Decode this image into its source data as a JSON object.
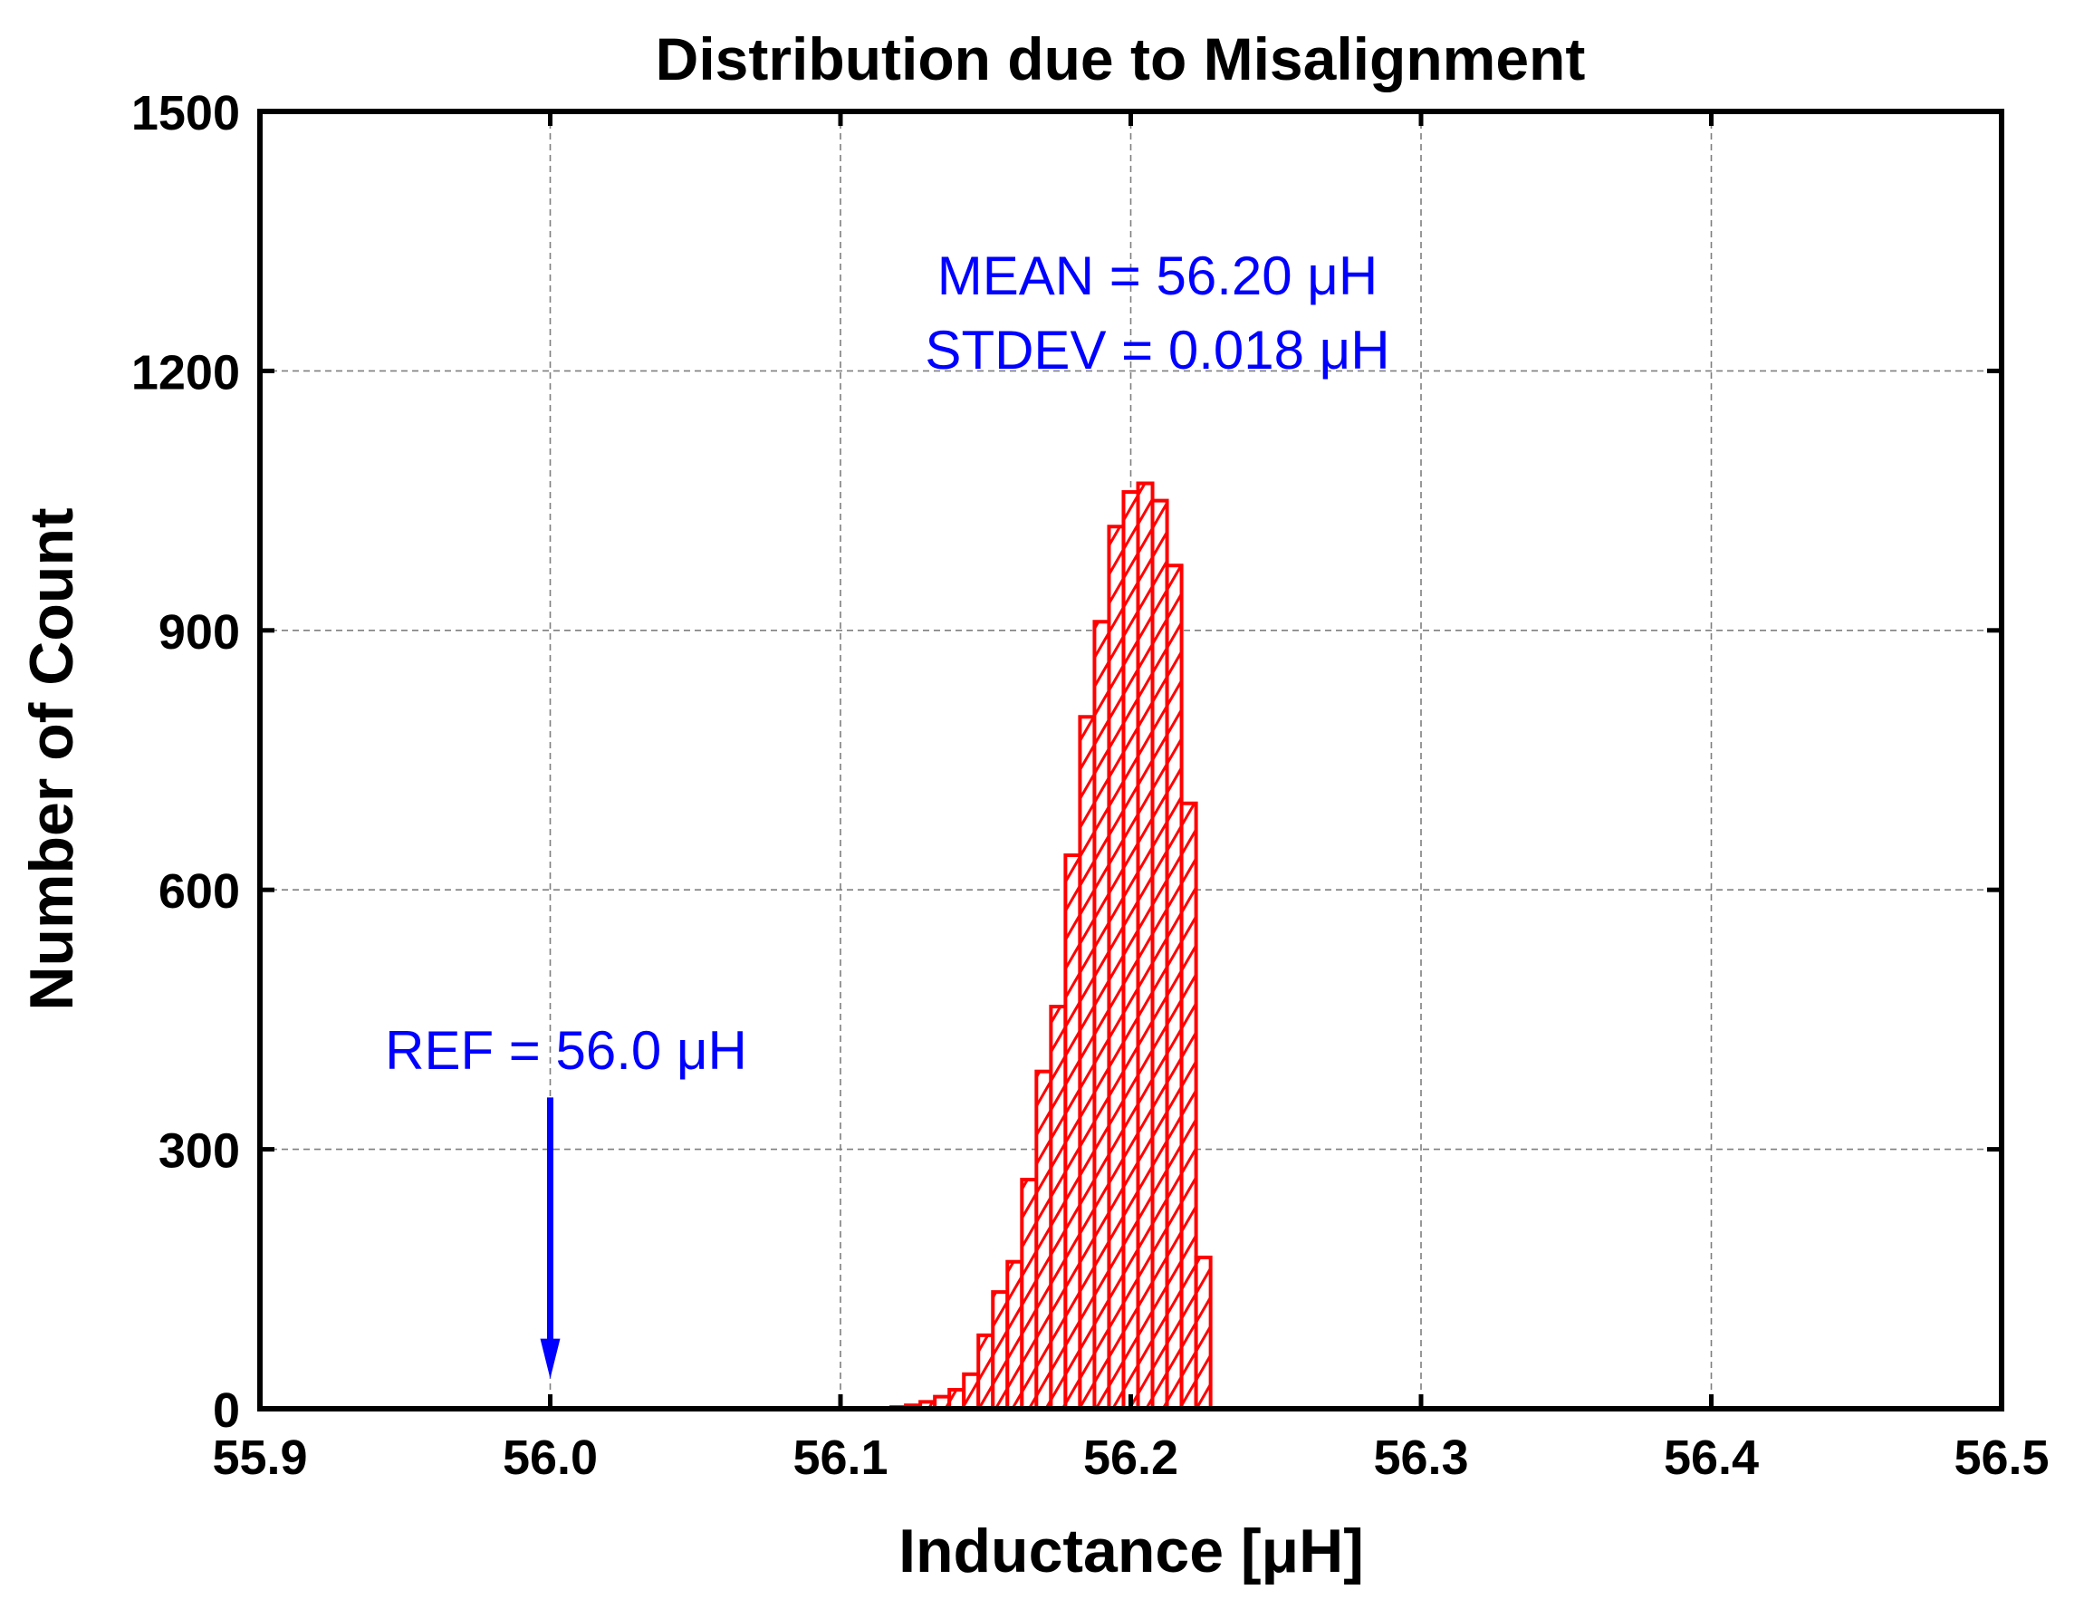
{
  "chart_data": {
    "type": "bar",
    "title": "Distribution due to Misalignment",
    "xlabel": "Inductance [μH]",
    "ylabel": "Number of Count",
    "xlim": [
      55.9,
      56.5
    ],
    "ylim": [
      0,
      1500
    ],
    "xticks": [
      "55.9",
      "56.0",
      "56.1",
      "56.2",
      "56.3",
      "56.4",
      "56.5"
    ],
    "yticks": [
      "0",
      "300",
      "600",
      "900",
      "1200",
      "1500"
    ],
    "grid": true,
    "bin_width": 0.005,
    "bins": [
      {
        "x": 56.115,
        "y": 1
      },
      {
        "x": 56.12,
        "y": 2
      },
      {
        "x": 56.125,
        "y": 4
      },
      {
        "x": 56.13,
        "y": 8
      },
      {
        "x": 56.135,
        "y": 14
      },
      {
        "x": 56.14,
        "y": 22
      },
      {
        "x": 56.145,
        "y": 40
      },
      {
        "x": 56.15,
        "y": 85
      },
      {
        "x": 56.155,
        "y": 135
      },
      {
        "x": 56.16,
        "y": 170
      },
      {
        "x": 56.165,
        "y": 265
      },
      {
        "x": 56.17,
        "y": 390
      },
      {
        "x": 56.175,
        "y": 465
      },
      {
        "x": 56.18,
        "y": 640
      },
      {
        "x": 56.185,
        "y": 800
      },
      {
        "x": 56.19,
        "y": 910
      },
      {
        "x": 56.195,
        "y": 1020
      },
      {
        "x": 56.2,
        "y": 1060
      },
      {
        "x": 56.205,
        "y": 1070
      },
      {
        "x": 56.21,
        "y": 1050
      },
      {
        "x": 56.215,
        "y": 975
      },
      {
        "x": 56.22,
        "y": 700
      },
      {
        "x": 56.225,
        "y": 175
      }
    ],
    "annotations": {
      "mean": "MEAN = 56.20 μH",
      "stdev": "STDEV = 0.018 μH",
      "ref": "REF = 56.0 μH",
      "ref_x": 56.0,
      "ref_arrow_from": 360,
      "ref_arrow_to": 35
    },
    "colors": {
      "bars": "#ff0000",
      "annotation": "#0000ff",
      "axes": "#000000",
      "grid": "#7f7f7f"
    }
  }
}
